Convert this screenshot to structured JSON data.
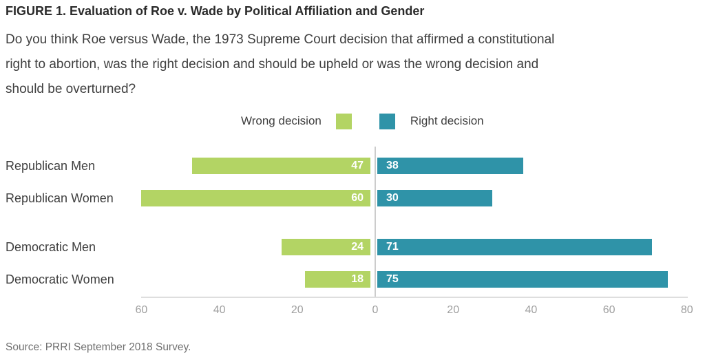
{
  "header": {
    "title": "FIGURE 1. Evaluation of Roe v. Wade by Political Affiliation and Gender",
    "subtitle_lines": [
      "Do you think Roe versus Wade, the 1973 Supreme Court decision that affirmed a constitutional",
      "right to abortion, was the right decision and should be upheld or was the wrong decision and",
      "should be overturned?"
    ]
  },
  "legend": {
    "wrong_label": "Wrong decision",
    "right_label": "Right decision"
  },
  "chart_data": {
    "type": "bar",
    "orientation": "horizontal-diverging",
    "title": "Evaluation of Roe v. Wade by Political Affiliation and Gender",
    "categories": [
      "Republican Men",
      "Republican Women",
      "Democratic Men",
      "Democratic Women"
    ],
    "series": [
      {
        "name": "Wrong decision",
        "direction": "left",
        "color": "#b3d464",
        "values": [
          47,
          60,
          24,
          18
        ]
      },
      {
        "name": "Right decision",
        "direction": "right",
        "color": "#2f93a8",
        "values": [
          38,
          30,
          71,
          75
        ]
      }
    ],
    "x_ticks": [
      -60,
      -40,
      -20,
      0,
      20,
      40,
      60,
      80
    ],
    "x_tick_labels": [
      "60",
      "40",
      "20",
      "0",
      "20",
      "40",
      "60",
      "80"
    ],
    "xlim": [
      -60,
      80
    ],
    "grid": false,
    "value_labels_shown": true,
    "legend_position": "top"
  },
  "footer": {
    "source": "Source: PRRI September 2018 Survey."
  },
  "colors": {
    "wrong": "#b3d464",
    "right": "#2f93a8",
    "axis_line": "#dedede",
    "zero_line": "#cccccc",
    "tick_text": "#9e9e9e"
  }
}
